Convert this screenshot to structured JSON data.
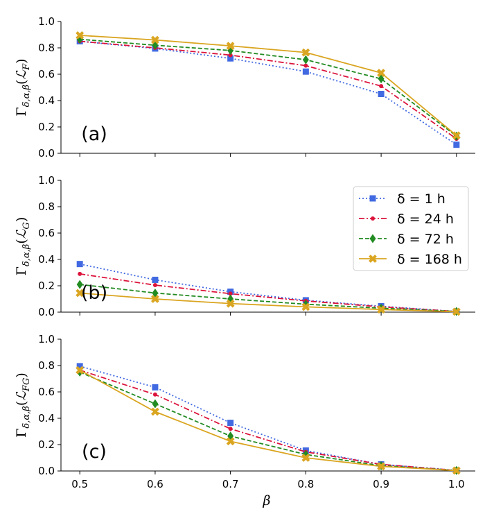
{
  "chart_data": {
    "type": "line",
    "x": [
      0.5,
      0.6,
      0.7,
      0.8,
      0.9,
      1.0
    ],
    "xlabel": "β",
    "xticks": [
      "0.5",
      "0.6",
      "0.7",
      "0.8",
      "0.9",
      "1.0"
    ],
    "ylim": [
      0,
      1
    ],
    "yticks": [
      "0.0",
      "0.2",
      "0.4",
      "0.6",
      "0.8",
      "1.0"
    ],
    "legend_location": "upper right of panel (b)",
    "series_styles": [
      {
        "name": "δ = 1 h",
        "color": "#4169e1",
        "dash": "dotted",
        "marker": "square"
      },
      {
        "name": "δ = 24 h",
        "color": "#dc143c",
        "dash": "dashdot",
        "marker": "dot"
      },
      {
        "name": "δ = 72 h",
        "color": "#228b22",
        "dash": "dashed",
        "marker": "diamond"
      },
      {
        "name": "δ = 168 h",
        "color": "#daa520",
        "dash": "solid",
        "marker": "x"
      }
    ],
    "panels": [
      {
        "label": "(a)",
        "ylabel": "Γδ,α,β(ℒF)",
        "ylabel_main": "Γ",
        "ylabel_sub": "δ,α,β",
        "ylabel_arg": "ℒ",
        "ylabel_arg_sub": "F",
        "series": [
          {
            "name": "δ = 1 h",
            "values": [
              0.85,
              0.795,
              0.72,
              0.62,
              0.45,
              0.065
            ]
          },
          {
            "name": "δ = 24 h",
            "values": [
              0.85,
              0.8,
              0.745,
              0.665,
              0.51,
              0.11
            ]
          },
          {
            "name": "δ = 72 h",
            "values": [
              0.865,
              0.82,
              0.78,
              0.71,
              0.565,
              0.13
            ]
          },
          {
            "name": "δ = 168 h",
            "values": [
              0.895,
              0.86,
              0.815,
              0.765,
              0.61,
              0.135
            ]
          }
        ]
      },
      {
        "label": "(b)",
        "ylabel": "Γδ,α,β(ℒG)",
        "ylabel_main": "Γ",
        "ylabel_sub": "δ,α,β",
        "ylabel_arg": "ℒ",
        "ylabel_arg_sub": "G",
        "series": [
          {
            "name": "δ = 1 h",
            "values": [
              0.365,
              0.245,
              0.155,
              0.09,
              0.045,
              0.005
            ]
          },
          {
            "name": "δ = 24 h",
            "values": [
              0.29,
              0.205,
              0.14,
              0.085,
              0.04,
              0.005
            ]
          },
          {
            "name": "δ = 72 h",
            "values": [
              0.21,
              0.145,
              0.1,
              0.06,
              0.03,
              0.005
            ]
          },
          {
            "name": "δ = 168 h",
            "values": [
              0.145,
              0.1,
              0.065,
              0.04,
              0.02,
              0.003
            ]
          }
        ]
      },
      {
        "label": "(c)",
        "ylabel": "Γδ,α,β(ℒFG)",
        "ylabel_main": "Γ",
        "ylabel_sub": "δ,α,β",
        "ylabel_arg": "ℒ",
        "ylabel_arg_sub": "FG",
        "series": [
          {
            "name": "δ = 1 h",
            "values": [
              0.795,
              0.635,
              0.365,
              0.155,
              0.05,
              0.005
            ]
          },
          {
            "name": "δ = 24 h",
            "values": [
              0.765,
              0.58,
              0.32,
              0.145,
              0.05,
              0.004
            ]
          },
          {
            "name": "δ = 72 h",
            "values": [
              0.75,
              0.51,
              0.265,
              0.125,
              0.04,
              0.004
            ]
          },
          {
            "name": "δ = 168 h",
            "values": [
              0.765,
              0.45,
              0.225,
              0.1,
              0.035,
              0.003
            ]
          }
        ]
      }
    ]
  }
}
